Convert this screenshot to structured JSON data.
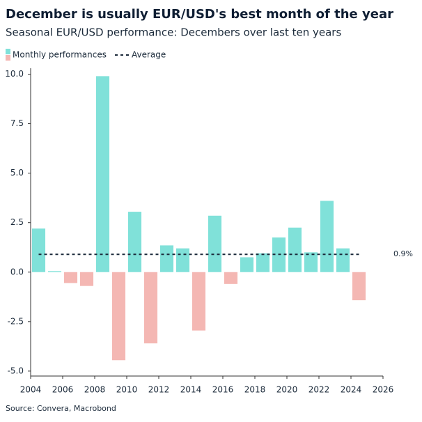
{
  "chart_data": {
    "type": "bar",
    "title": "December is usually EUR/USD's best month of the year",
    "subtitle": "Seasonal EUR/USD performance: Decembers over last ten years",
    "source": "Source: Convera, Macrobond",
    "x": [
      2004.5,
      2005.5,
      2006.5,
      2007.5,
      2008.5,
      2009.5,
      2010.5,
      2011.5,
      2012.5,
      2013.5,
      2014.5,
      2015.5,
      2016.5,
      2017.5,
      2018.5,
      2019.5,
      2020.5,
      2021.5,
      2022.5,
      2023.5,
      2024.5
    ],
    "series": [
      {
        "name": "Monthly performances",
        "color": "#80e1d9",
        "negative_color": "#f4b7b3",
        "values": [
          2.2,
          0.05,
          -0.55,
          -0.7,
          9.9,
          -4.45,
          3.05,
          -3.6,
          1.35,
          1.2,
          -2.95,
          2.85,
          -0.6,
          0.75,
          0.95,
          1.75,
          2.25,
          1.0,
          3.6,
          1.2,
          -1.42
        ]
      }
    ],
    "average": {
      "name": "Average",
      "value": 0.9,
      "label": "0.9%",
      "color": "#1b2a3a"
    },
    "xlim": [
      2004,
      2026
    ],
    "xticks": [
      2004,
      2006,
      2008,
      2010,
      2012,
      2014,
      2016,
      2018,
      2020,
      2022,
      2024,
      2026
    ],
    "ylim": [
      -5.25,
      10.3
    ],
    "yticks": [
      {
        "value": 10,
        "label": "10.0"
      },
      7.5,
      {
        "value": 5,
        "label": "5.0"
      },
      2.5,
      {
        "value": 0,
        "label": "0.0"
      },
      -2.5,
      {
        "value": -5,
        "label": "-5.0"
      }
    ]
  }
}
